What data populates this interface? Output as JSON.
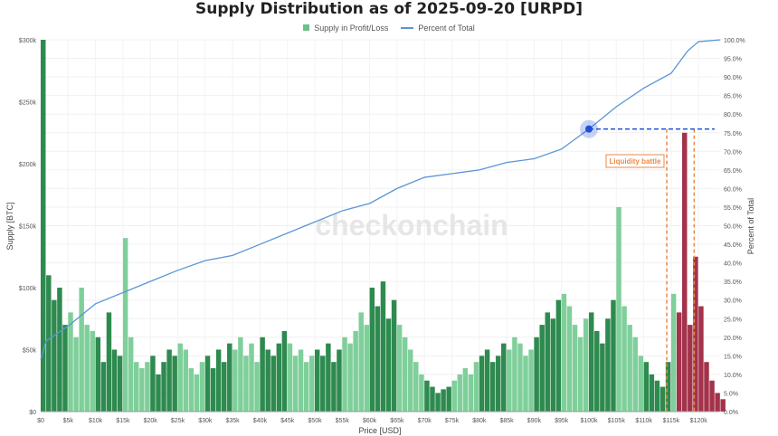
{
  "chart_data": {
    "type": "bar",
    "title": "Supply Distribution as of 2025-09-20 [URPD]",
    "xlabel": "Price [USD]",
    "ylabel": "Supply [BTC]",
    "y2label": "Percent of Total",
    "legend": [
      "Supply in Profit/Loss",
      "Percent of Total"
    ],
    "legend_placement": "top-center",
    "watermark": "checkonchain",
    "annotation": "Liquidity battle",
    "grid": true,
    "xlim": [
      0,
      124000
    ],
    "ylim": [
      0,
      300000
    ],
    "y2lim": [
      0,
      100
    ],
    "x_ticks": [
      "$0",
      "$5k",
      "$10k",
      "$15k",
      "$20k",
      "$25k",
      "$30k",
      "$35k",
      "$40k",
      "$45k",
      "$50k",
      "$55k",
      "$60k",
      "$65k",
      "$70k",
      "$75k",
      "$80k",
      "$85k",
      "$90k",
      "$95k",
      "$100k",
      "$105k",
      "$110k",
      "$115k",
      "$120k"
    ],
    "y_ticks": [
      "$0",
      "$50k",
      "$100k",
      "$150k",
      "$200k",
      "$250k",
      "$300k"
    ],
    "y2_ticks": [
      "0.0%",
      "5.0%",
      "10.0%",
      "15.0%",
      "20.0%",
      "25.0%",
      "30.0%",
      "35.0%",
      "40.0%",
      "45.0%",
      "50.0%",
      "55.0%",
      "60.0%",
      "65.0%",
      "70.0%",
      "75.0%",
      "80.0%",
      "85.0%",
      "90.0%",
      "95.0%",
      "100.0%"
    ],
    "bin_width": 1000,
    "current_price": 115700,
    "bars_k_btc": [
      300,
      110,
      90,
      100,
      70,
      80,
      60,
      100,
      70,
      65,
      60,
      40,
      80,
      50,
      45,
      140,
      60,
      40,
      35,
      40,
      45,
      30,
      40,
      50,
      45,
      55,
      50,
      35,
      30,
      40,
      45,
      35,
      50,
      40,
      55,
      50,
      60,
      45,
      55,
      40,
      60,
      50,
      45,
      55,
      65,
      55,
      45,
      50,
      40,
      45,
      50,
      45,
      55,
      40,
      50,
      60,
      55,
      65,
      80,
      70,
      100,
      85,
      105,
      75,
      90,
      70,
      60,
      50,
      40,
      30,
      25,
      20,
      15,
      18,
      20,
      25,
      30,
      35,
      30,
      40,
      45,
      50,
      40,
      45,
      55,
      50,
      60,
      55,
      45,
      50,
      60,
      70,
      80,
      75,
      90,
      95,
      85,
      70,
      60,
      75,
      80,
      65,
      55,
      75,
      90,
      165,
      85,
      70,
      60,
      45,
      40,
      30,
      25,
      20,
      40,
      95,
      80,
      225,
      70,
      125,
      85,
      40,
      25,
      15,
      10
    ],
    "percent_line": {
      "x": [
        0,
        1000,
        5000,
        10000,
        15000,
        20000,
        25000,
        30000,
        35000,
        40000,
        45000,
        50000,
        55000,
        60000,
        65000,
        70000,
        75000,
        80000,
        85000,
        90000,
        95000,
        100000,
        105000,
        110000,
        115000,
        118000,
        120000,
        124000
      ],
      "y": [
        14,
        19,
        23,
        29,
        32,
        35,
        38,
        40.6,
        42,
        45,
        48,
        51,
        54,
        56,
        60,
        63,
        64,
        65,
        67,
        68,
        70.6,
        76,
        82,
        87,
        91,
        97,
        99.5,
        100
      ]
    },
    "highlight_point": {
      "x": 100000,
      "y": 76
    },
    "range_lines": [
      114200,
      119200
    ],
    "colors": {
      "profit_dark": "#2e8a4f",
      "profit_light": "#7fcf9a",
      "loss": "#a3324a",
      "line": "#5b95d6",
      "highlight": "#1f4fd6",
      "range": "#e8894a"
    }
  }
}
